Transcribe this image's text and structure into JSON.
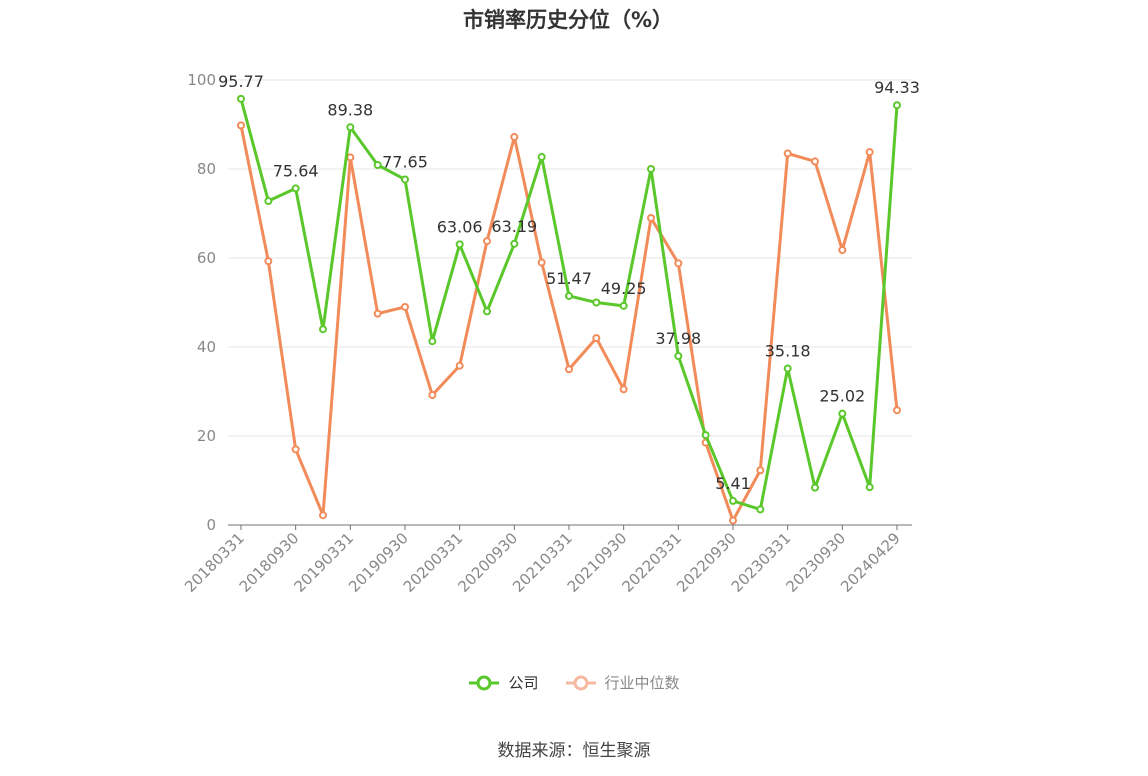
{
  "chart_data": {
    "type": "line",
    "title": "市销率历史分位（%）",
    "ylim": [
      0,
      100
    ],
    "yticks": [
      0,
      20,
      40,
      60,
      80,
      100
    ],
    "categories": [
      "20180331",
      "20180630",
      "20180930",
      "20181231",
      "20190331",
      "20190630",
      "20190930",
      "20191231",
      "20200331",
      "20200630",
      "20200930",
      "20201231",
      "20210331",
      "20210630",
      "20210930",
      "20211231",
      "20220331",
      "20220630",
      "20220930",
      "20221231",
      "20230331",
      "20230630",
      "20230930",
      "20231231",
      "20240429"
    ],
    "tick_labels": [
      "20180331",
      "20180930",
      "20190331",
      "20190930",
      "20200331",
      "20200930",
      "20210331",
      "20210930",
      "20220331",
      "20220930",
      "20230331",
      "20230930",
      "20240429"
    ],
    "series": [
      {
        "name": "公司",
        "color": "#5ac72b",
        "values": [
          95.77,
          72.8,
          75.64,
          44.0,
          89.38,
          80.9,
          77.65,
          41.3,
          63.06,
          48.0,
          63.19,
          82.7,
          51.47,
          50.0,
          49.25,
          80.0,
          37.98,
          20.2,
          5.41,
          3.5,
          35.18,
          8.4,
          25.02,
          8.5,
          94.33
        ],
        "data_labels": [
          {
            "index": 0,
            "text": "95.77"
          },
          {
            "index": 2,
            "text": "75.64"
          },
          {
            "index": 4,
            "text": "89.38"
          },
          {
            "index": 6,
            "text": "77.65"
          },
          {
            "index": 8,
            "text": "63.06"
          },
          {
            "index": 10,
            "text": "63.19"
          },
          {
            "index": 12,
            "text": "51.47"
          },
          {
            "index": 14,
            "text": "49.25"
          },
          {
            "index": 16,
            "text": "37.98"
          },
          {
            "index": 18,
            "text": "5.41"
          },
          {
            "index": 20,
            "text": "35.18"
          },
          {
            "index": 22,
            "text": "25.02"
          },
          {
            "index": 24,
            "text": "94.33"
          }
        ]
      },
      {
        "name": "行业中位数",
        "color": "#f28b5a",
        "values": [
          89.8,
          59.3,
          17.0,
          2.2,
          82.6,
          47.5,
          49.0,
          29.2,
          35.8,
          63.8,
          87.2,
          59.0,
          35.0,
          42.0,
          30.5,
          69.0,
          58.8,
          18.5,
          1.0,
          12.3,
          83.5,
          81.7,
          61.8,
          83.8,
          25.8
        ]
      }
    ],
    "grid": true,
    "legend_position": "bottom"
  },
  "legend": [
    {
      "label": "公司",
      "color": "#5ac72b"
    },
    {
      "label": "行业中位数",
      "color": "#f6b9a0"
    }
  ],
  "source": "数据来源：恒生聚源"
}
